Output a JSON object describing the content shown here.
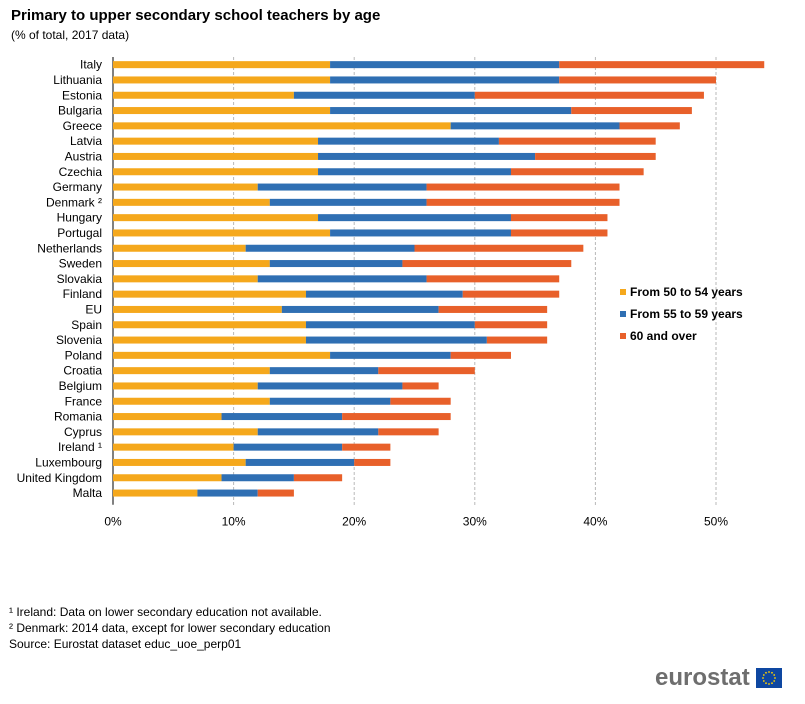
{
  "title": "Primary to upper secondary school teachers by age",
  "subtitle": "(% of total, 2017  data)",
  "footnotes": [
    "¹ Ireland: Data on lower secondary education not available.",
    "² Denmark: 2014 data, except for lower secondary education",
    "Source: Eurostat dataset educ_uoe_perp01"
  ],
  "logo": {
    "text": "eurostat",
    "flag_color": "#0e47a1",
    "star_color": "#ffd200"
  },
  "chart_data": {
    "type": "bar",
    "orientation": "horizontal",
    "stacked": true,
    "categories": [
      "Italy",
      "Lithuania",
      "Estonia",
      "Bulgaria",
      "Greece",
      "Latvia",
      "Austria",
      "Czechia",
      "Germany",
      "Denmark ²",
      "Hungary",
      "Portugal",
      "Netherlands",
      "Sweden",
      "Slovakia",
      "Finland",
      "EU",
      "Spain",
      "Slovenia",
      "Poland",
      "Croatia",
      "Belgium",
      "France",
      "Romania",
      "Cyprus",
      "Ireland ¹",
      "Luxembourg",
      "United Kingdom",
      "Malta"
    ],
    "series": [
      {
        "name": "From 50 to 54 years",
        "color": "#f5a81c",
        "values": [
          18,
          18,
          15,
          18,
          28,
          17,
          17,
          17,
          12,
          13,
          17,
          18,
          11,
          13,
          12,
          16,
          14,
          16,
          16,
          18,
          13,
          12,
          13,
          9,
          12,
          10,
          11,
          9,
          7
        ]
      },
      {
        "name": "From 55 to 59 years",
        "color": "#2f6fb3",
        "values": [
          19,
          19,
          15,
          20,
          14,
          15,
          18,
          16,
          14,
          13,
          16,
          15,
          14,
          11,
          14,
          13,
          13,
          14,
          15,
          10,
          9,
          12,
          10,
          10,
          10,
          9,
          9,
          6,
          5
        ]
      },
      {
        "name": "60 and over",
        "color": "#e8602a",
        "values": [
          17,
          13,
          19,
          10,
          5,
          13,
          10,
          11,
          16,
          16,
          8,
          8,
          14,
          14,
          11,
          8,
          9,
          6,
          5,
          5,
          8,
          3,
          5,
          9,
          5,
          4,
          3,
          4,
          3
        ]
      }
    ],
    "xlim": [
      0,
      55
    ],
    "xticks": [
      0,
      10,
      20,
      30,
      40,
      50
    ],
    "xtick_labels": [
      "0%",
      "10%",
      "20%",
      "30%",
      "40%",
      "50%"
    ],
    "grid": true,
    "legend_position": "right"
  }
}
